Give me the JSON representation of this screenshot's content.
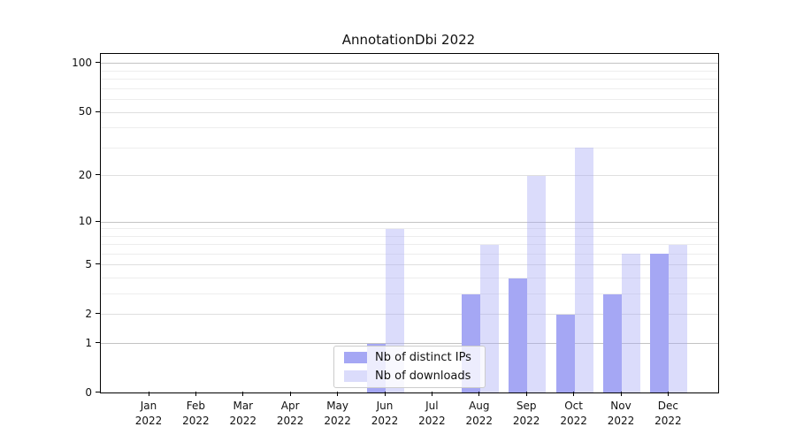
{
  "chart_data": {
    "type": "bar",
    "title": "AnnotationDbi 2022",
    "categories": [
      "Jan",
      "Feb",
      "Mar",
      "Apr",
      "May",
      "Jun",
      "Jul",
      "Aug",
      "Sep",
      "Oct",
      "Nov",
      "Dec"
    ],
    "year": "2022",
    "series": [
      {
        "name": "Nb of distinct IPs",
        "color": "#a5a7f4",
        "values": [
          0,
          0,
          0,
          0,
          0,
          1,
          0,
          3,
          4,
          2,
          3,
          6
        ]
      },
      {
        "name": "Nb of downloads",
        "color": "rgba(165,167,244,0.4)",
        "values": [
          0,
          0,
          0,
          0,
          0,
          9,
          0,
          7,
          20,
          30,
          6,
          7
        ]
      }
    ],
    "xlabel": "",
    "ylabel": "",
    "y_scale": "log10(1+x)",
    "ylim": [
      0,
      115
    ],
    "y_ticks": [
      0,
      1,
      2,
      5,
      10,
      20,
      50,
      100
    ],
    "y_minor_gridlines": [
      3,
      4,
      6,
      7,
      8,
      9,
      30,
      40,
      60,
      70,
      80,
      90
    ],
    "grid": "on",
    "legend_position": "bottom-center"
  }
}
